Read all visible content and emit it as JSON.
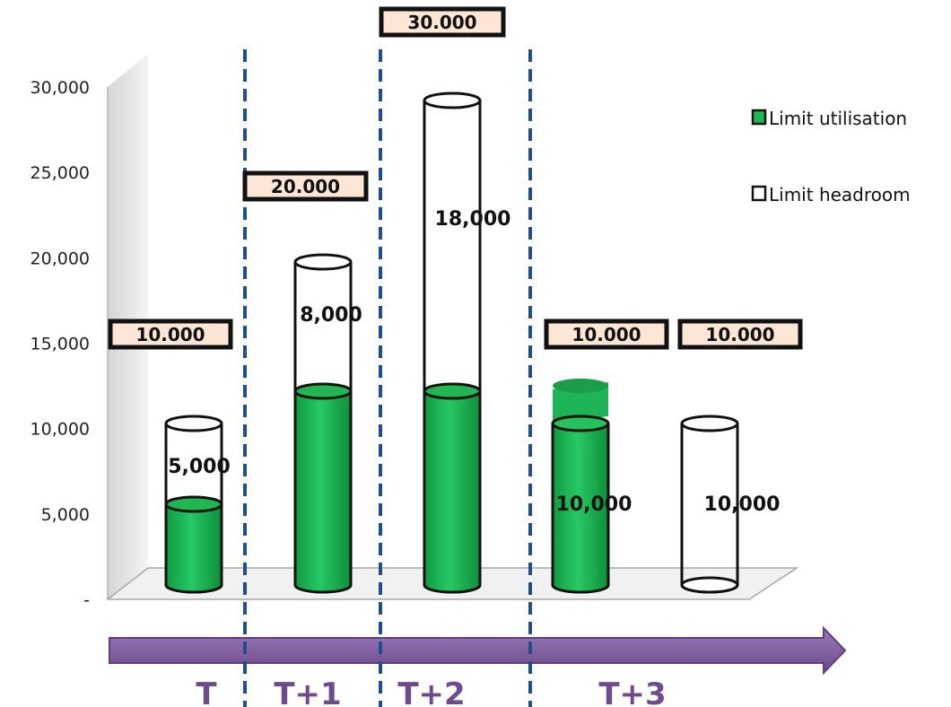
{
  "chart_data": {
    "type": "bar",
    "title": "",
    "categories": [
      "T",
      "T+1",
      "T+2",
      "T+3 (a)",
      "T+3 (b)"
    ],
    "series": [
      {
        "name": "Limit utilisation",
        "values": [
          5000,
          12000,
          12000,
          10000,
          0
        ]
      },
      {
        "name": "Limit headroom",
        "values": [
          5000,
          8000,
          18000,
          0,
          10000
        ]
      }
    ],
    "data_labels": [
      "5,000",
      "8,000",
      "18,000",
      "10,000",
      "10,000"
    ],
    "limit_labels": [
      "10.000",
      "20.000",
      "30.000",
      "10.000",
      "10.000"
    ],
    "y_ticks": [
      "-",
      "5,000",
      "10,000",
      "15,000",
      "20,000",
      "25,000",
      "30,000"
    ],
    "ylim": [
      0,
      30000
    ],
    "timeline_labels": [
      "T",
      "T+1",
      "T+2",
      "T+3"
    ],
    "legend_position": "top-right",
    "colors": {
      "utilisation": "#1db954",
      "utilisation_dark": "#0e8f3b",
      "headroom": "#ffffff",
      "limit_box": "#fde6d6",
      "divider": "#1f4e8c",
      "arrow": "#7d5a9b",
      "period_text": "#6e4a8e"
    }
  }
}
